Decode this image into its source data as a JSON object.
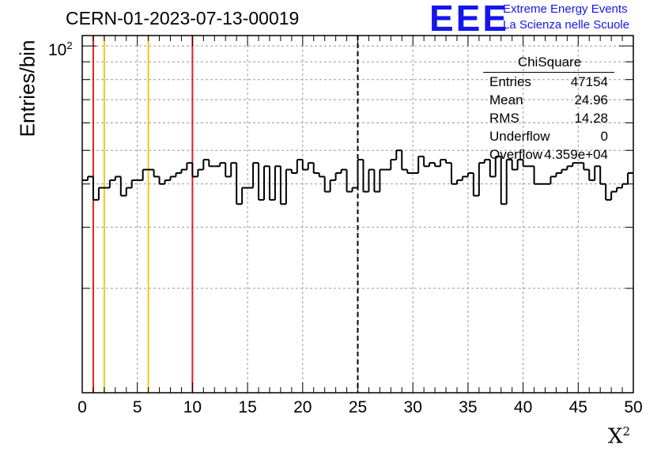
{
  "title": "CERN-01-2023-07-13-00019",
  "logo": {
    "text": "EEE",
    "line1": "Extreme Energy Events",
    "line2": "La Scienza nelle Scuole",
    "color": "#1515ee"
  },
  "chart_data": {
    "type": "histogram",
    "xlabel": "X",
    "xlabel_sup": "2",
    "ylabel": "Entries/bin",
    "y_scale": "log",
    "ylim": [
      10,
      100
    ],
    "xlim": [
      0,
      50
    ],
    "x_ticks": [
      "0",
      "5",
      "10",
      "15",
      "20",
      "25",
      "30",
      "35",
      "40",
      "45",
      "50"
    ],
    "y_tick_label": {
      "base": "10",
      "exp": "2"
    },
    "grid": true,
    "bin_width": 0.5,
    "values": [
      41,
      42,
      36,
      39,
      39,
      41,
      42,
      37,
      39,
      41,
      41,
      44,
      44,
      42,
      40,
      41,
      42,
      43,
      44,
      46,
      42,
      44,
      47,
      45,
      45,
      46,
      42,
      46,
      35,
      39,
      39,
      46,
      36,
      45,
      36,
      45,
      35,
      44,
      43,
      47,
      44,
      46,
      43,
      42,
      38,
      41,
      43,
      44,
      38,
      39,
      47,
      38,
      44,
      38,
      44,
      44,
      47,
      50,
      44,
      43,
      43,
      48,
      45,
      46,
      45,
      47,
      46,
      40,
      41,
      42,
      43,
      37,
      46,
      47,
      42,
      48,
      35,
      47,
      44,
      47,
      45,
      45,
      40,
      40,
      40,
      42,
      43,
      44,
      45,
      46,
      46,
      44,
      41,
      45,
      40,
      36,
      38,
      39,
      40,
      43
    ],
    "vertical_lines": [
      {
        "x": 1,
        "color": "#e02020",
        "style": "solid"
      },
      {
        "x": 2,
        "color": "#f2c61f",
        "style": "solid"
      },
      {
        "x": 6,
        "color": "#f2c61f",
        "style": "solid"
      },
      {
        "x": 10,
        "color": "#e02020",
        "style": "solid"
      },
      {
        "x": 25,
        "color": "#000000",
        "style": "dashed"
      }
    ],
    "stats": {
      "title": "ChiSquare",
      "rows": [
        {
          "label": "Entries",
          "value": "47154"
        },
        {
          "label": "Mean",
          "value": "24.96"
        },
        {
          "label": "RMS",
          "value": "14.28"
        },
        {
          "label": "Underflow",
          "value": "0"
        },
        {
          "label": "Overflow",
          "value": "4.359e+04"
        }
      ]
    }
  }
}
